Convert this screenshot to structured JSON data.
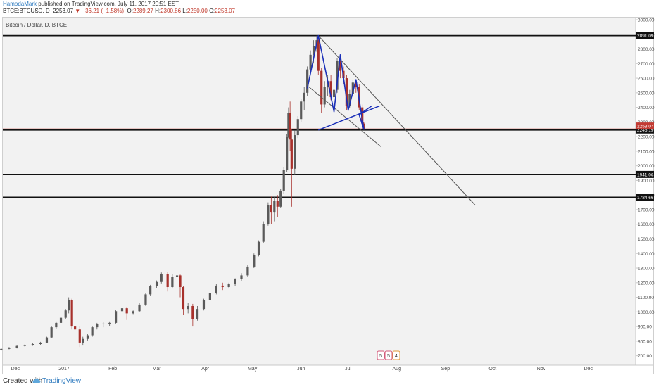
{
  "header": {
    "author": "HamodaMark",
    "published_text": " published on TradingView.com, July 11, 2017 20:51 EST",
    "symbol": "BTCE:BTCUSD, D",
    "last": "2253.07",
    "change": "▼ −36.21 (−1.58%)",
    "o_label": "O:",
    "o": "2289.27",
    "h_label": "H:",
    "h": "2300.86",
    "l_label": "L:",
    "l": "2250.00",
    "c_label": "C:",
    "c": "2253.07"
  },
  "footer": {
    "created_with": "Created with",
    "brand": "TradingView"
  },
  "badges": [
    "5",
    "5",
    "4"
  ],
  "colors": {
    "accent": "#2f7bbf",
    "up": "#5a5a5a",
    "down": "#a8312c",
    "pattern": "#1a2fb8",
    "price_tag": "#c23b33",
    "background": "#f2f2f2"
  },
  "chart_data": {
    "type": "candlestick",
    "title": "Bitcoin / Dollar, D, BTCE",
    "ylim": [
      650,
      3000
    ],
    "y_ticks": [
      700,
      800,
      900,
      1000,
      1100,
      1200,
      1300,
      1400,
      1500,
      1600,
      1700,
      1800,
      1900,
      2000,
      2100,
      2200,
      2300,
      2400,
      2500,
      2600,
      2700,
      2800,
      2900,
      3000
    ],
    "y_tick_labels": [
      "700.00",
      "800.00",
      "900.00",
      "1000.00",
      "1100.00",
      "1200.00",
      "1300.00",
      "1400.00",
      "1500.00",
      "1600.00",
      "1700.00",
      "1800.00",
      "1900.00",
      "2000.00",
      "2100.00",
      "2200.00",
      "2300.00",
      "2400.00",
      "2500.00",
      "2600.00",
      "2700.00",
      "2800.00",
      "2900.00",
      "3000.00"
    ],
    "x_labels": [
      "Dec",
      "2017",
      "Feb",
      "Mar",
      "Apr",
      "May",
      "Jun",
      "Jul",
      "Aug",
      "Sep",
      "Oct",
      "Nov",
      "Dec"
    ],
    "x_label_days": [
      -31,
      0,
      31,
      59,
      90,
      120,
      151,
      181,
      212,
      243,
      273,
      304,
      334
    ],
    "grid": false,
    "horizontal_levels": [
      {
        "value": 2891.09,
        "label": "2891.09"
      },
      {
        "value": 2245.19,
        "label": "2245.19"
      },
      {
        "value": 1941.06,
        "label": "1941.06"
      },
      {
        "value": 1784.66,
        "label": "1784.66"
      }
    ],
    "last_price": {
      "value": 2253.07,
      "label": "2253.07"
    },
    "trendline": {
      "start": [
        "2017-06-12",
        2891.09
      ],
      "end": [
        "2017-09-20",
        1730
      ]
    },
    "channel": [
      {
        "start": [
          "2017-06-06",
          2540
        ],
        "end": [
          "2017-07-22",
          2130
        ]
      },
      {
        "start": [
          "2017-06-12",
          2245
        ],
        "end": [
          "2017-07-21",
          2410
        ]
      }
    ],
    "zigzag": [
      [
        "2017-06-05",
        2530
      ],
      [
        "2017-06-12",
        2891
      ],
      [
        "2017-06-22",
        2370
      ],
      [
        "2017-06-26",
        2760
      ],
      [
        "2017-07-01",
        2380
      ],
      [
        "2017-07-06",
        2590
      ],
      [
        "2017-07-11",
        2250
      ],
      [
        "2017-07-08",
        2350
      ],
      [
        "2017-07-16",
        2410
      ]
    ],
    "candles": [
      [
        "2016-11-17",
        737,
        745,
        733,
        741
      ],
      [
        "2016-11-22",
        741,
        750,
        736,
        747
      ],
      [
        "2016-11-27",
        747,
        760,
        744,
        755
      ],
      [
        "2016-12-02",
        755,
        772,
        750,
        767
      ],
      [
        "2016-12-07",
        767,
        778,
        762,
        772
      ],
      [
        "2016-12-12",
        772,
        785,
        768,
        780
      ],
      [
        "2016-12-17",
        780,
        795,
        775,
        790
      ],
      [
        "2016-12-21",
        790,
        830,
        785,
        825
      ],
      [
        "2016-12-24",
        825,
        905,
        820,
        895
      ],
      [
        "2016-12-27",
        895,
        935,
        885,
        925
      ],
      [
        "2016-12-30",
        925,
        980,
        900,
        960
      ],
      [
        "2017-01-02",
        960,
        1020,
        950,
        1010
      ],
      [
        "2017-01-04",
        1010,
        1100,
        990,
        1080
      ],
      [
        "2017-01-06",
        1080,
        1090,
        880,
        900
      ],
      [
        "2017-01-08",
        900,
        920,
        860,
        880
      ],
      [
        "2017-01-11",
        880,
        900,
        760,
        790
      ],
      [
        "2017-01-13",
        790,
        830,
        770,
        815
      ],
      [
        "2017-01-16",
        815,
        850,
        805,
        840
      ],
      [
        "2017-01-19",
        840,
        905,
        830,
        895
      ],
      [
        "2017-01-22",
        895,
        925,
        880,
        915
      ],
      [
        "2017-01-26",
        915,
        930,
        895,
        920
      ],
      [
        "2017-01-30",
        920,
        935,
        905,
        925
      ],
      [
        "2017-02-03",
        925,
        1015,
        920,
        1005
      ],
      [
        "2017-02-07",
        1005,
        1040,
        990,
        1025
      ],
      [
        "2017-02-10",
        1025,
        1030,
        945,
        990
      ],
      [
        "2017-02-14",
        990,
        1010,
        985,
        1005
      ],
      [
        "2017-02-18",
        1005,
        1060,
        1000,
        1050
      ],
      [
        "2017-02-22",
        1050,
        1130,
        1040,
        1120
      ],
      [
        "2017-02-25",
        1120,
        1185,
        1110,
        1175
      ],
      [
        "2017-03-01",
        1175,
        1215,
        1165,
        1205
      ],
      [
        "2017-03-04",
        1205,
        1270,
        1195,
        1260
      ],
      [
        "2017-03-08",
        1260,
        1275,
        1140,
        1170
      ],
      [
        "2017-03-11",
        1170,
        1260,
        1160,
        1240
      ],
      [
        "2017-03-14",
        1240,
        1265,
        1225,
        1250
      ],
      [
        "2017-03-16",
        1250,
        1255,
        1100,
        1170
      ],
      [
        "2017-03-18",
        1170,
        1180,
        980,
        1020
      ],
      [
        "2017-03-21",
        1020,
        1060,
        990,
        1040
      ],
      [
        "2017-03-24",
        1040,
        1055,
        900,
        950
      ],
      [
        "2017-03-27",
        950,
        1040,
        940,
        1020
      ],
      [
        "2017-03-31",
        1020,
        1090,
        1010,
        1080
      ],
      [
        "2017-04-04",
        1080,
        1140,
        1070,
        1130
      ],
      [
        "2017-04-08",
        1130,
        1190,
        1120,
        1180
      ],
      [
        "2017-04-12",
        1180,
        1200,
        1150,
        1170
      ],
      [
        "2017-04-16",
        1170,
        1200,
        1160,
        1190
      ],
      [
        "2017-04-20",
        1190,
        1230,
        1180,
        1225
      ],
      [
        "2017-04-24",
        1225,
        1265,
        1210,
        1250
      ],
      [
        "2017-04-28",
        1250,
        1320,
        1240,
        1310
      ],
      [
        "2017-05-02",
        1310,
        1400,
        1300,
        1390
      ],
      [
        "2017-05-05",
        1390,
        1490,
        1380,
        1480
      ],
      [
        "2017-05-08",
        1480,
        1620,
        1470,
        1600
      ],
      [
        "2017-05-11",
        1600,
        1750,
        1590,
        1730
      ],
      [
        "2017-05-13",
        1730,
        1790,
        1600,
        1680
      ],
      [
        "2017-05-15",
        1680,
        1790,
        1620,
        1760
      ],
      [
        "2017-05-17",
        1760,
        1800,
        1650,
        1720
      ],
      [
        "2017-05-19",
        1720,
        1840,
        1710,
        1830
      ],
      [
        "2017-05-21",
        1830,
        1990,
        1810,
        1970
      ],
      [
        "2017-05-23",
        1970,
        2220,
        1960,
        2200
      ],
      [
        "2017-05-24",
        2200,
        2400,
        2190,
        2360
      ],
      [
        "2017-05-25",
        2360,
        2440,
        2100,
        2180
      ],
      [
        "2017-05-26",
        2180,
        2250,
        1720,
        1980
      ],
      [
        "2017-05-28",
        1980,
        2240,
        1940,
        2210
      ],
      [
        "2017-05-30",
        2210,
        2340,
        2190,
        2320
      ],
      [
        "2017-06-01",
        2320,
        2460,
        2300,
        2440
      ],
      [
        "2017-06-03",
        2440,
        2540,
        2380,
        2500
      ],
      [
        "2017-06-05",
        2500,
        2680,
        2480,
        2660
      ],
      [
        "2017-06-07",
        2660,
        2790,
        2640,
        2760
      ],
      [
        "2017-06-09",
        2760,
        2860,
        2700,
        2820
      ],
      [
        "2017-06-11",
        2820,
        2891,
        2780,
        2860
      ],
      [
        "2017-06-12",
        2860,
        2880,
        2620,
        2650
      ],
      [
        "2017-06-14",
        2650,
        2670,
        2360,
        2420
      ],
      [
        "2017-06-16",
        2420,
        2580,
        2400,
        2540
      ],
      [
        "2017-06-18",
        2540,
        2620,
        2480,
        2580
      ],
      [
        "2017-06-20",
        2580,
        2620,
        2450,
        2470
      ],
      [
        "2017-06-22",
        2470,
        2560,
        2420,
        2520
      ],
      [
        "2017-06-24",
        2520,
        2740,
        2500,
        2720
      ],
      [
        "2017-06-26",
        2720,
        2750,
        2600,
        2650
      ],
      [
        "2017-06-28",
        2650,
        2680,
        2560,
        2600
      ],
      [
        "2017-06-30",
        2600,
        2620,
        2380,
        2410
      ],
      [
        "2017-07-02",
        2410,
        2520,
        2400,
        2490
      ],
      [
        "2017-07-04",
        2490,
        2590,
        2470,
        2570
      ],
      [
        "2017-07-06",
        2570,
        2580,
        2500,
        2540
      ],
      [
        "2017-07-08",
        2540,
        2560,
        2380,
        2400
      ],
      [
        "2017-07-10",
        2400,
        2420,
        2270,
        2290
      ],
      [
        "2017-07-11",
        2289.27,
        2300.86,
        2250,
        2253.07
      ]
    ]
  }
}
